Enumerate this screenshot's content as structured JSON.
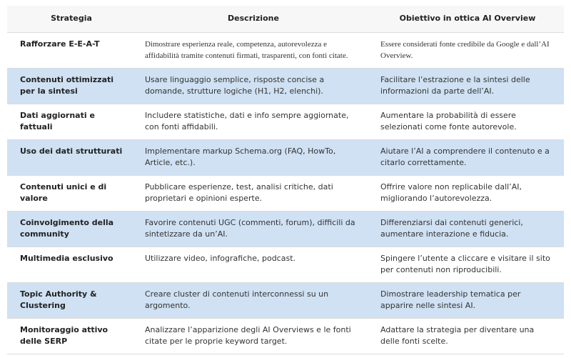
{
  "table": {
    "header": [
      "Strategia",
      "Descrizione",
      "Obiettivo in ottica AI Overview"
    ],
    "rows": [
      [
        "Rafforzare E-E-A-T",
        "Dimostrare esperienza reale, competenza, autorevolezza e affidabilità tramite contenuti firmati, trasparenti, con fonti citate.",
        "Essere considerati fonte credibile da Google e dall’AI Overview."
      ],
      [
        "Contenuti ottimizzati per la sintesi",
        "Usare linguaggio semplice, risposte concise a domande, strutture logiche (H1, H2, elenchi).",
        "Facilitare l’estrazione e la sintesi delle informazioni da parte dell’AI."
      ],
      [
        "Dati aggiornati e fattuali",
        "Includere statistiche, dati e info sempre aggiornate, con fonti affidabili.",
        "Aumentare la probabilità di essere selezionati come fonte autorevole."
      ],
      [
        "Uso dei dati strutturati",
        "Implementare markup Schema.org (FAQ, HowTo, Article, etc.).",
        "Aiutare l’AI a comprendere il contenuto e a citarlo correttamente."
      ],
      [
        "Contenuti unici e di valore",
        "Pubblicare esperienze, test, analisi critiche, dati proprietari e opinioni esperte.",
        "Offrire valore non replicabile dall’AI, migliorando l’autorevolezza."
      ],
      [
        "Coinvolgimento della community",
        "Favorire contenuti UGC (commenti, forum), difficili da sintetizzare da un’AI.",
        "Differenziarsi dai contenuti generici, aumentare interazione e fiducia."
      ],
      [
        "Multimedia esclusivo",
        "Utilizzare video, infografiche, podcast.",
        "Spingere l’utente a cliccare e visitare il sito per contenuti non riproducibili."
      ],
      [
        "Topic Authority & Clustering",
        "Creare cluster di contenuti interconnessi su un argomento.",
        "Dimostrare leadership tematica per apparire nelle sintesi AI."
      ],
      [
        "Monitoraggio attivo delle SERP",
        "Analizzare l’apparizione degli AI Overviews e le fonti citate per le proprie keyword target.",
        "Adattare la strategia per diventare una delle fonti scelte."
      ]
    ]
  }
}
